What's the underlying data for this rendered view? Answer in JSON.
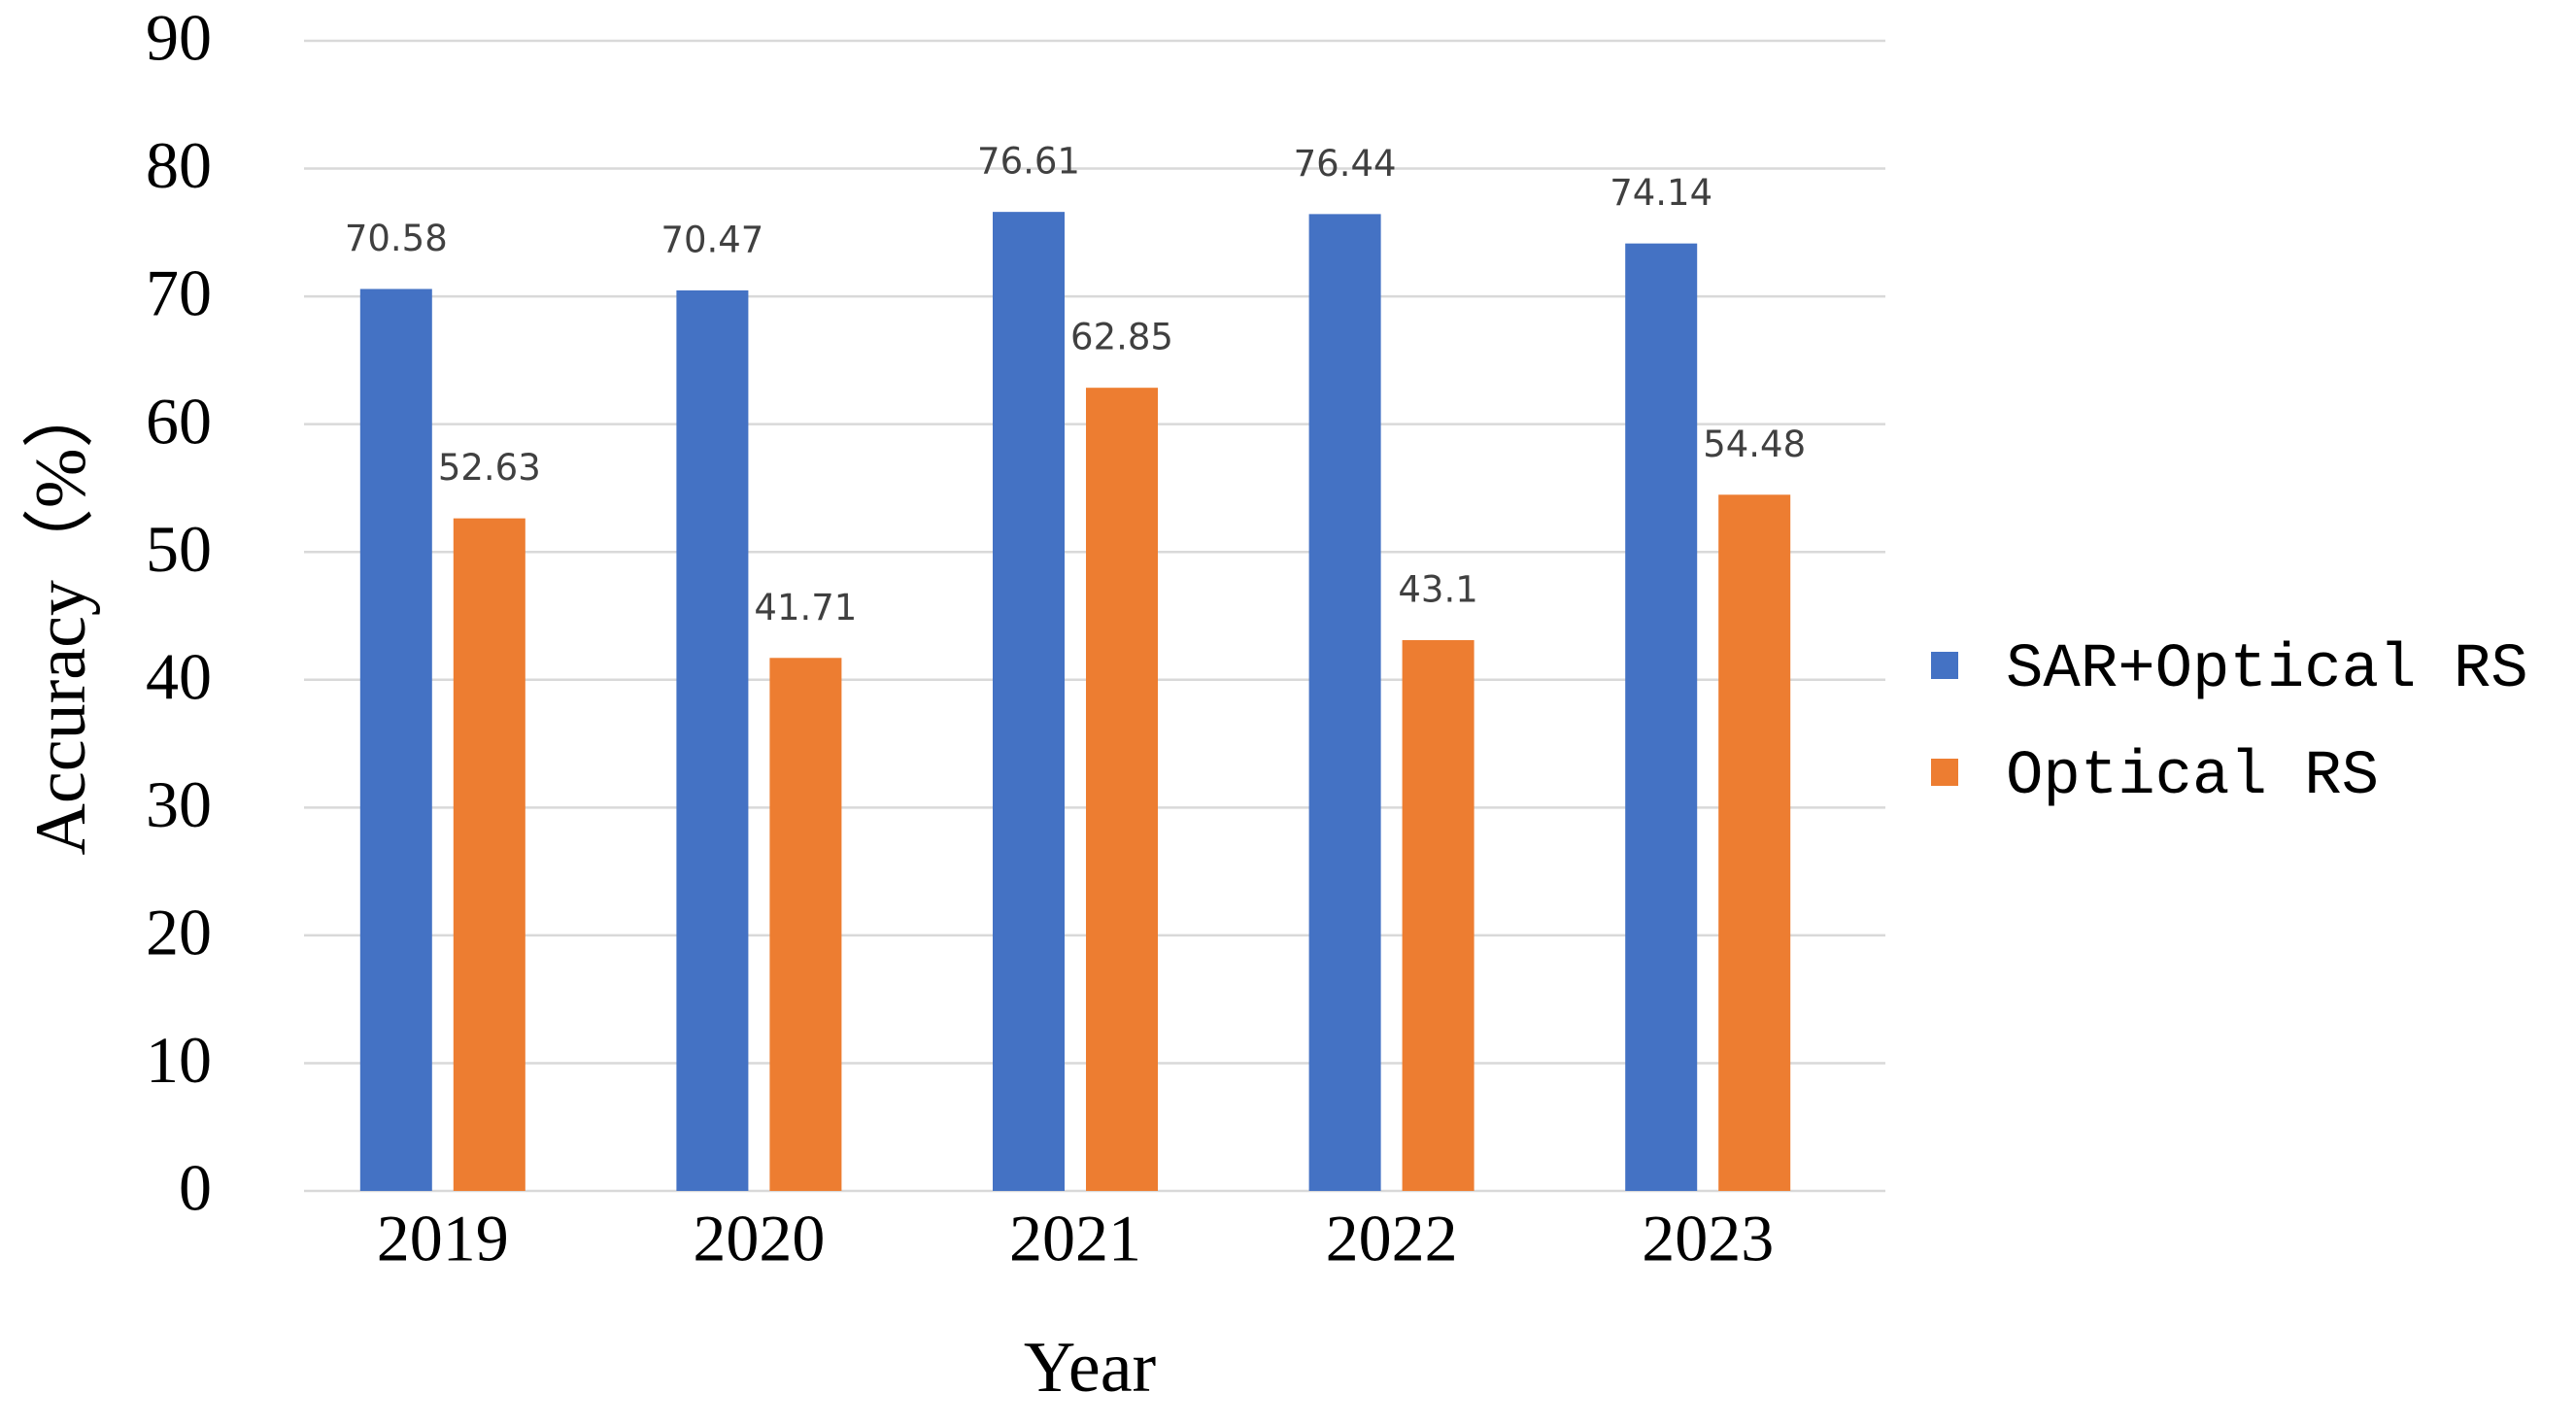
{
  "chart_data": {
    "type": "bar",
    "x_label": "Year",
    "y_label": "Accuracy（%）",
    "categories": [
      "2019",
      "2020",
      "2021",
      "2022",
      "2023"
    ],
    "series": [
      {
        "name": "SAR+Optical RS",
        "color": "#4472c4",
        "values": [
          70.58,
          70.47,
          76.61,
          76.44,
          74.14
        ]
      },
      {
        "name": "Optical RS",
        "color": "#ed7d31",
        "values": [
          52.63,
          41.71,
          62.85,
          43.1,
          54.48
        ]
      }
    ],
    "ylim": [
      0,
      90
    ],
    "yticks": [
      0,
      10,
      20,
      30,
      40,
      50,
      60,
      70,
      80,
      90
    ],
    "grid": true,
    "legend": "right"
  }
}
